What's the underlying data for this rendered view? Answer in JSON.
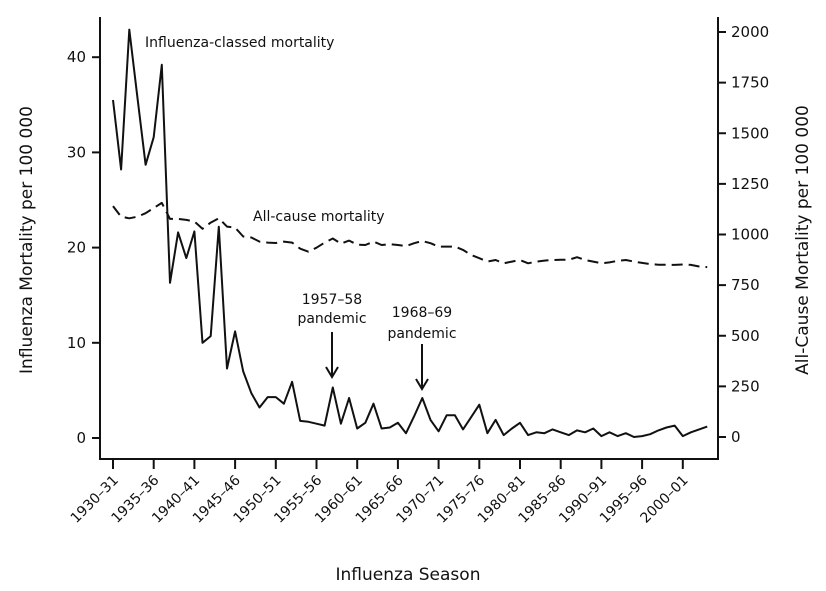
{
  "chart_data": {
    "type": "line",
    "title": "",
    "xlabel": "Influenza Season",
    "ylabel_left": "Influenza Mortality per 100 000",
    "ylabel_right": "All-Cause Mortality per 100 000",
    "ylim_left": [
      0,
      44
    ],
    "ylim_right": [
      0,
      2000
    ],
    "left_ticks": [
      0,
      10,
      20,
      30,
      40
    ],
    "right_ticks": [
      0,
      250,
      500,
      750,
      1000,
      1250,
      1500,
      1750,
      2000
    ],
    "x_tick_labels": [
      "1930–31",
      "1935–36",
      "1940–41",
      "1945–46",
      "1950–51",
      "1955–56",
      "1960–61",
      "1965–66",
      "1970–71",
      "1975–76",
      "1980–81",
      "1985–86",
      "1990–91",
      "1995–96",
      "2000–01"
    ],
    "x_tick_years": [
      1930,
      1935,
      1940,
      1945,
      1950,
      1955,
      1960,
      1965,
      1970,
      1975,
      1980,
      1985,
      1990,
      1995,
      2000
    ],
    "grid": false,
    "x_start_year": 1930,
    "series": [
      {
        "name": "Influenza-classed mortality",
        "axis": "left",
        "style": "solid",
        "values": [
          35.5,
          28.2,
          42.9,
          35.8,
          28.7,
          31.6,
          39.2,
          16.3,
          21.6,
          18.9,
          21.7,
          10.0,
          10.7,
          22.2,
          7.3,
          11.2,
          7.0,
          4.7,
          3.2,
          4.3,
          4.3,
          3.6,
          5.9,
          1.8,
          1.7,
          1.5,
          1.3,
          5.3,
          1.5,
          4.2,
          1.0,
          1.6,
          3.6,
          1.0,
          1.1,
          1.6,
          0.5,
          2.3,
          4.2,
          1.9,
          0.7,
          2.4,
          2.4,
          0.9,
          2.2,
          3.5,
          0.5,
          1.9,
          0.3,
          1.0,
          1.6,
          0.3,
          0.6,
          0.5,
          0.9,
          0.6,
          0.3,
          0.8,
          0.6,
          1.0,
          0.2,
          0.6,
          0.2,
          0.5,
          0.1,
          0.2,
          0.4,
          0.8,
          1.1,
          1.3,
          0.2,
          0.6,
          0.9,
          1.2
        ]
      },
      {
        "name": "All-cause mortality",
        "axis": "right",
        "style": "dashed",
        "values": [
          1140,
          1088,
          1080,
          1088,
          1105,
          1131,
          1156,
          1077,
          1077,
          1072,
          1064,
          1028,
          1059,
          1080,
          1039,
          1034,
          990,
          985,
          965,
          960,
          958,
          965,
          960,
          930,
          915,
          935,
          960,
          980,
          955,
          970,
          950,
          948,
          965,
          948,
          952,
          948,
          943,
          957,
          968,
          957,
          940,
          940,
          940,
          924,
          899,
          883,
          866,
          874,
          858,
          866,
          874,
          858,
          866,
          871,
          874,
          875,
          875,
          888,
          874,
          866,
          858,
          862,
          870,
          874,
          866,
          860,
          854,
          851,
          851,
          850,
          852,
          850,
          842,
          839
        ]
      }
    ],
    "annotations": [
      {
        "text": "Influenza-classed mortality"
      },
      {
        "text": "All-cause mortality"
      },
      {
        "lines": [
          "1957–58",
          "pandemic"
        ],
        "year": 1957
      },
      {
        "lines": [
          "1968–69",
          "pandemic"
        ],
        "year": 1968
      }
    ]
  }
}
